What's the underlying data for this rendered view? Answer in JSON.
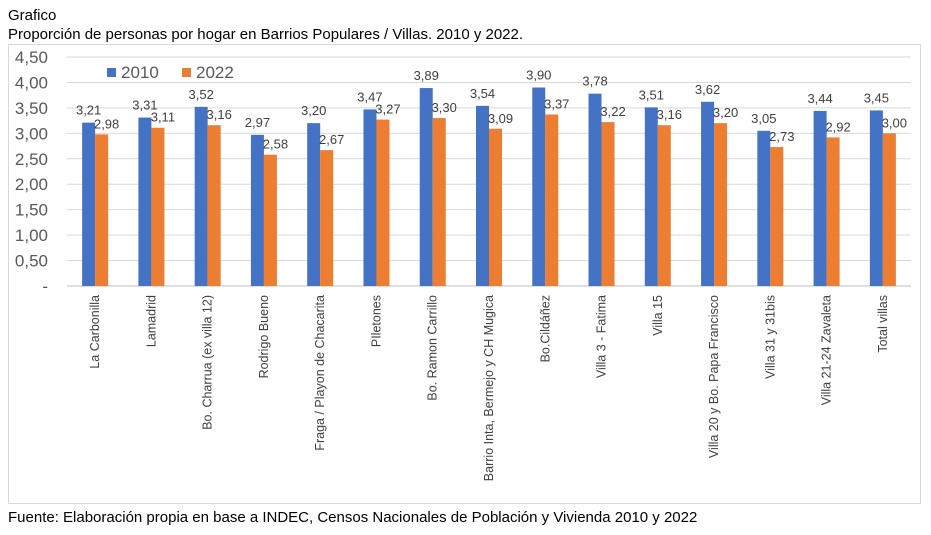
{
  "header": {
    "label": "Grafico",
    "title": "Proporción de personas por hogar en Barrios Populares / Villas. 2010 y 2022."
  },
  "source": "Fuente: Elaboración propia en base a INDEC, Censos Nacionales de Población y Vivienda 2010 y 2022",
  "chart_data": {
    "type": "bar",
    "title": "Proporción de personas por hogar en Barrios Populares / Villas. 2010 y 2022.",
    "xlabel": "",
    "ylabel": "",
    "ylim": [
      0,
      4.5
    ],
    "yticks": [
      0,
      0.5,
      1,
      1.5,
      2,
      2.5,
      3,
      3.5,
      4,
      4.5
    ],
    "ytick_labels": [
      "-",
      "0,50",
      "1,00",
      "1,50",
      "2,00",
      "2,50",
      "3,00",
      "3,50",
      "4,00",
      "4,50"
    ],
    "grid": true,
    "legend_position": "top-left",
    "categories": [
      "La Carbonilla",
      "Lamadrid",
      "Bo. Charrua (ex villa 12)",
      "Rodrigo Bueno",
      "Fraga / Playon de Chacarita",
      "PIletones",
      "Bo. Ramon Carrillo",
      "Barrio Inta, Bermejo y CH Mugica",
      "Bo.Cildáñez",
      "Villa 3 - Fatima",
      "Villa 15",
      "Villa 20 y Bo. Papa Francisco",
      "Villa 31 y 31bis",
      "Villa 21-24 Zavaleta",
      "Total villas"
    ],
    "series": [
      {
        "name": "2010",
        "color": "#4472c4",
        "values": [
          3.21,
          3.31,
          3.52,
          2.97,
          3.2,
          3.47,
          3.89,
          3.54,
          3.9,
          3.78,
          3.51,
          3.62,
          3.05,
          3.44,
          3.45
        ],
        "labels": [
          "3,21",
          "3,31",
          "3,52",
          "2,97",
          "3,20",
          "3,47",
          "3,89",
          "3,54",
          "3,90",
          "3,78",
          "3,51",
          "3,62",
          "3,05",
          "3,44",
          "3,45"
        ]
      },
      {
        "name": "2022",
        "color": "#ed7d31",
        "values": [
          2.98,
          3.11,
          3.16,
          2.58,
          2.67,
          3.27,
          3.3,
          3.09,
          3.37,
          3.22,
          3.16,
          3.2,
          2.73,
          2.92,
          3.0
        ],
        "labels": [
          "2,98",
          "3,11",
          "3,16",
          "2,58",
          "2,67",
          "3,27",
          "3,30",
          "3,09",
          "3,37",
          "3,22",
          "3,16",
          "3,20",
          "2,73",
          "2,92",
          "3,00"
        ]
      }
    ]
  }
}
